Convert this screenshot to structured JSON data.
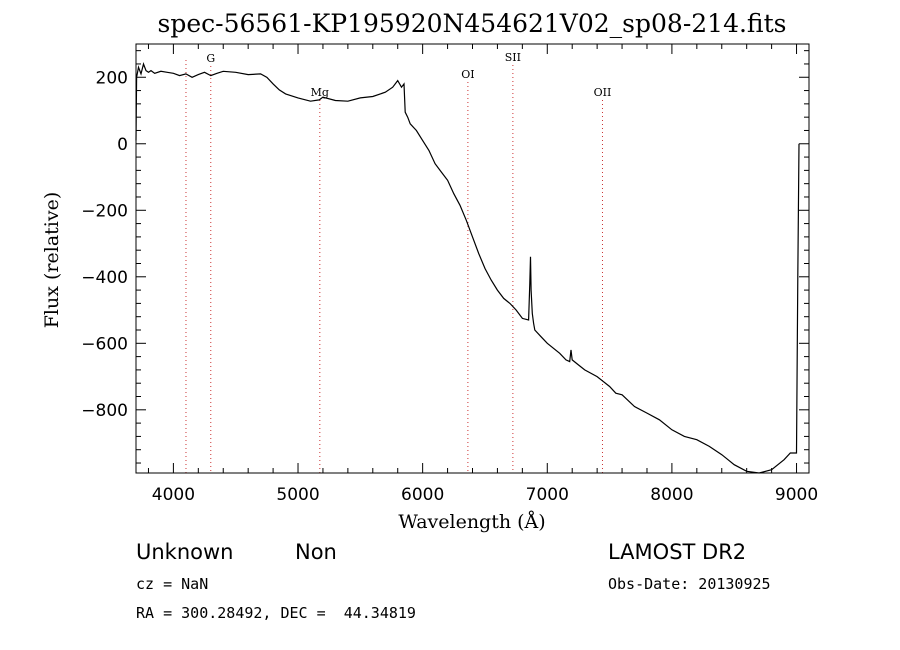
{
  "chart_data": {
    "type": "line",
    "title": "spec-56561-KP195920N454621V02_sp08-214.fits",
    "xlabel": "Wavelength (Å)",
    "ylabel": "Flux (relative)",
    "xlim": [
      3700,
      9100
    ],
    "ylim": [
      -990,
      300
    ],
    "x_ticks": [
      4000,
      5000,
      6000,
      7000,
      8000,
      9000
    ],
    "y_ticks": [
      -800,
      -600,
      -400,
      -200,
      0,
      200
    ],
    "x_tick_labels": [
      "4000",
      "5000",
      "6000",
      "7000",
      "8000",
      "9000"
    ],
    "y_tick_labels": [
      "−800",
      "−600",
      "−400",
      "−200",
      "0",
      "200"
    ],
    "grid": false,
    "series": [
      {
        "x": [
          3700,
          3705,
          3720,
          3740,
          3760,
          3780,
          3800,
          3820,
          3850,
          3900,
          3950,
          4000,
          4050,
          4100,
          4150,
          4200,
          4250,
          4300,
          4350,
          4400,
          4500,
          4600,
          4700,
          4750,
          4800,
          4850,
          4900,
          5000,
          5100,
          5170,
          5200,
          5300,
          5400,
          5500,
          5600,
          5700,
          5760,
          5800,
          5830,
          5850,
          5860,
          5880,
          5900,
          5950,
          6000,
          6050,
          6100,
          6150,
          6200,
          6250,
          6300,
          6350,
          6400,
          6450,
          6500,
          6550,
          6600,
          6650,
          6700,
          6750,
          6800,
          6850,
          6860,
          6865,
          6870,
          6880,
          6890,
          6900,
          6950,
          7000,
          7100,
          7150,
          7180,
          7190,
          7200,
          7250,
          7300,
          7400,
          7500,
          7550,
          7600,
          7700,
          7800,
          7900,
          8000,
          8100,
          8200,
          8300,
          8400,
          8450,
          8500,
          8600,
          8700,
          8800,
          8900,
          8950,
          9000,
          9010,
          9020
        ],
        "y": [
          10,
          200,
          230,
          210,
          240,
          220,
          215,
          220,
          212,
          218,
          215,
          212,
          205,
          210,
          200,
          208,
          215,
          205,
          212,
          218,
          215,
          208,
          210,
          200,
          180,
          162,
          150,
          138,
          128,
          132,
          140,
          130,
          128,
          138,
          142,
          155,
          170,
          190,
          170,
          180,
          95,
          80,
          60,
          40,
          10,
          -20,
          -60,
          -85,
          -110,
          -150,
          -185,
          -230,
          -280,
          -330,
          -375,
          -410,
          -440,
          -465,
          -480,
          -500,
          -525,
          -530,
          -420,
          -340,
          -440,
          -510,
          -540,
          -560,
          -580,
          -600,
          -630,
          -650,
          -655,
          -620,
          -650,
          -665,
          -680,
          -700,
          -730,
          -750,
          -755,
          -790,
          -810,
          -830,
          -860,
          -880,
          -890,
          -910,
          -935,
          -950,
          -965,
          -985,
          -990,
          -980,
          -950,
          -930,
          -930,
          -400,
          0
        ]
      }
    ],
    "spectral_lines": [
      {
        "label": "G",
        "x": 4300
      },
      {
        "label": "Mg",
        "x": 5175
      },
      {
        "label": "OI",
        "x": 6363
      },
      {
        "label": "SII",
        "x": 6724
      },
      {
        "label": "OII",
        "x": 7443
      },
      {
        "label": "",
        "x": 4101
      }
    ]
  },
  "info": {
    "class": "Unknown",
    "subclass": "Non",
    "survey": "LAMOST DR2",
    "cz": "cz = NaN",
    "obs_date": "Obs-Date: 20130925",
    "radec": "RA = 300.28492, DEC =  44.34819"
  },
  "colors": {
    "spectrum": "#000000",
    "line_marker": "#cc3333"
  }
}
